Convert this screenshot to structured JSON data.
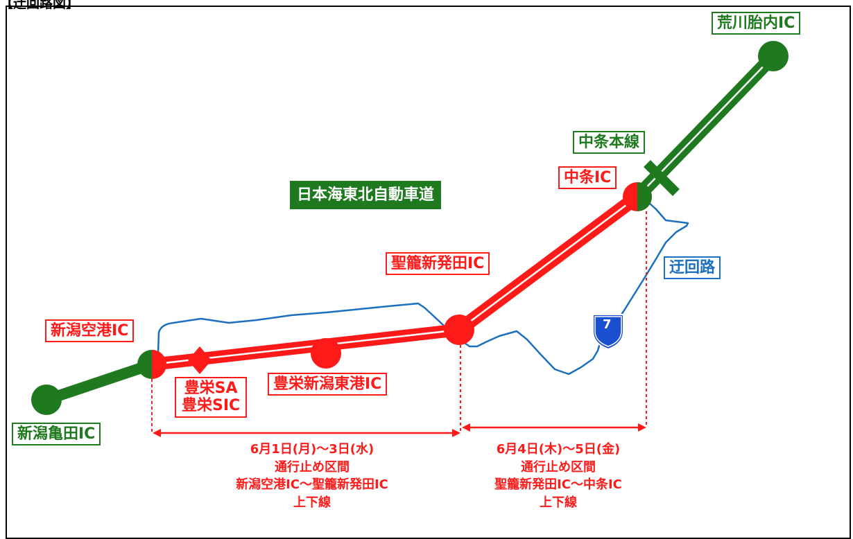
{
  "header": "【迂回路図】",
  "expressway": "日本海東北自動車道",
  "labels": {
    "arakawa": "荒川胎内IC",
    "chujo_honsen": "中条本線",
    "chujo_ic": "中条IC",
    "seiro": "聖籠新発田IC",
    "ukairo": "迂回路",
    "niigata_kuko": "新潟空港IC",
    "hoei_sa": "豊栄SA",
    "hoei_sic": "豊栄SIC",
    "hoei_higashiko": "豊栄新潟東港IC",
    "kameda": "新潟亀田IC"
  },
  "route_number": "7",
  "closure_1": {
    "dates": "6月1日(月)～3日(水)",
    "title": "通行止め区間",
    "section": "新潟空港IC～聖籠新発田IC",
    "direction": "上下線"
  },
  "closure_2": {
    "dates": "6月4日(木)～5日(金)",
    "title": "通行止め区間",
    "section": "聖籠新発田IC～中条IC",
    "direction": "上下線"
  },
  "colors": {
    "open": "#1f7a1f",
    "closed": "#ff1a1a",
    "detour": "#1a6fc0"
  }
}
